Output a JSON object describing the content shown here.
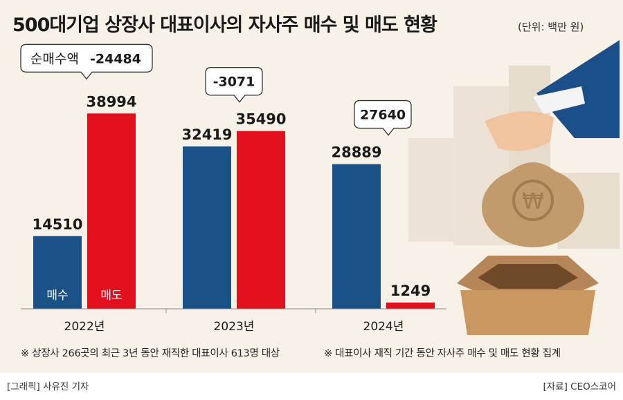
{
  "title": "500대기업 상장사 대표이사의 자사주 매수 및 매도 현황",
  "unit": "(단위: 백만 원)",
  "notes": [
    "※ 상장사 266곳의 최근 3년 동안 재직한 대표이사 613명 대상",
    "※ 대표이사 재직 기간 동안 자사주 매수 및 매도 현황 집계"
  ],
  "footer": {
    "left": "[그래픽] 사유진 기자",
    "right": "[자료] CEO스코어"
  },
  "colors": {
    "buy": "#1a5186",
    "sell": "#e20f1c",
    "panel": "#f7f1e8"
  },
  "chart_data": {
    "type": "bar",
    "categories": [
      "2022년",
      "2023년",
      "2024년"
    ],
    "series": [
      {
        "name": "매수",
        "values": [
          14510,
          32419,
          28889
        ]
      },
      {
        "name": "매도",
        "values": [
          38994,
          35490,
          1249
        ]
      }
    ],
    "net_label": "순매수액",
    "net_values": [
      "-24484",
      "-3071",
      "27640"
    ],
    "ylim": [
      0,
      40000
    ]
  }
}
